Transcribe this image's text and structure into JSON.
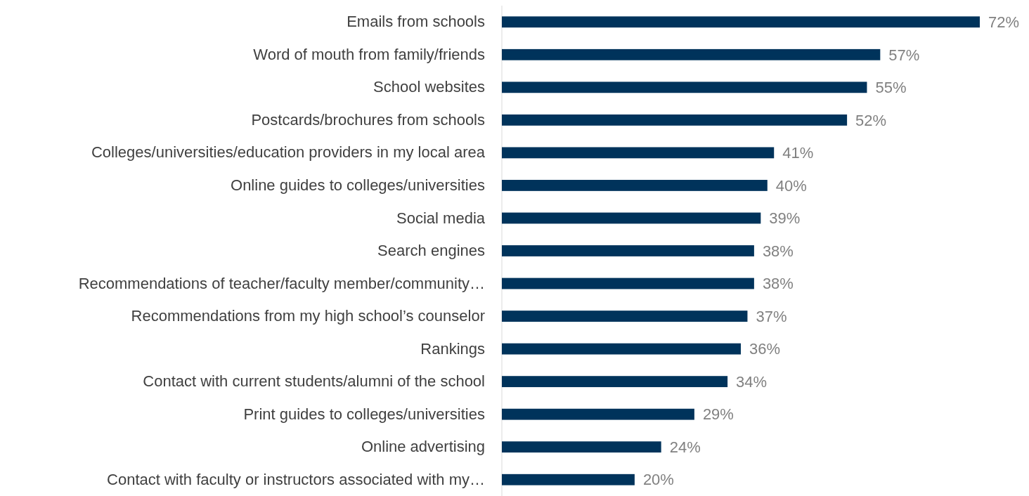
{
  "chart_data": {
    "type": "bar",
    "orientation": "horizontal",
    "categories": [
      "Emails from schools",
      "Word of mouth from family/friends",
      "School websites",
      "Postcards/brochures from schools",
      "Colleges/universities/education providers in my local area",
      "Online guides to colleges/universities",
      "Social media",
      "Search engines",
      "Recommendations of teacher/faculty member/community…",
      "Recommendations from my high school’s counselor",
      "Rankings",
      "Contact with current students/alumni of the school",
      "Print guides to colleges/universities",
      "Online advertising",
      "Contact with faculty or instructors associated with my…"
    ],
    "values": [
      72,
      57,
      55,
      52,
      41,
      40,
      39,
      38,
      38,
      37,
      36,
      34,
      29,
      24,
      20
    ],
    "value_labels": [
      "72%",
      "57%",
      "55%",
      "52%",
      "41%",
      "40%",
      "39%",
      "38%",
      "38%",
      "37%",
      "36%",
      "34%",
      "29%",
      "24%",
      "20%"
    ],
    "color": "#00335b"
  }
}
